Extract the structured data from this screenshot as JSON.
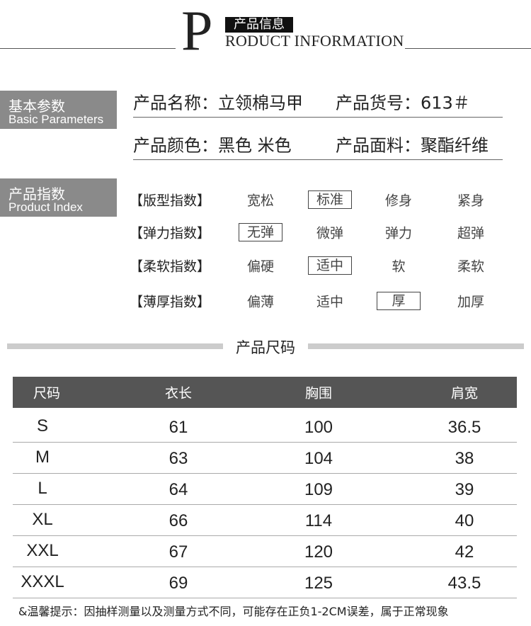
{
  "header": {
    "big_letter": "P",
    "title_cn": "产品信息",
    "title_en": "RODUCT INFORMATION"
  },
  "basic": {
    "label_cn": "基本参数",
    "label_en": "Basic Parameters",
    "rows": [
      [
        "产品名称：立领棉马甲",
        "产品货号：613＃"
      ],
      [
        "产品颜色：黑色 米色",
        "产品面料：聚酯纤维"
      ]
    ]
  },
  "index": {
    "label_cn": "产品指数",
    "label_en": "Product Index",
    "rows": [
      {
        "name": "【版型指数】",
        "options": [
          "宽松",
          "标准",
          "修身",
          "紧身"
        ],
        "selected": 1
      },
      {
        "name": "【弹力指数】",
        "options": [
          "无弹",
          "微弹",
          "弹力",
          "超弹"
        ],
        "selected": 0
      },
      {
        "name": "【柔软指数】",
        "options": [
          "偏硬",
          "适中",
          "软",
          "柔软"
        ],
        "selected": 1
      },
      {
        "name": "【薄厚指数】",
        "options": [
          "偏薄",
          "适中",
          "厚",
          "加厚"
        ],
        "selected": 2
      }
    ]
  },
  "size": {
    "title": "产品尺码",
    "table": {
      "columns": [
        "尺码",
        "衣长",
        "胸围",
        "肩宽"
      ],
      "rows": [
        [
          "S",
          "61",
          "100",
          "36.5"
        ],
        [
          "M",
          "63",
          "104",
          "38"
        ],
        [
          "L",
          "64",
          "109",
          "39"
        ],
        [
          "XL",
          "66",
          "114",
          "40"
        ],
        [
          "XXL",
          "67",
          "120",
          "42"
        ],
        [
          "XXXL",
          "69",
          "125",
          "43.5"
        ]
      ]
    }
  },
  "note": "&温馨提示：因抽样测量以及测量方式不同，可能存在正负1-2CM误差，属于正常现象"
}
